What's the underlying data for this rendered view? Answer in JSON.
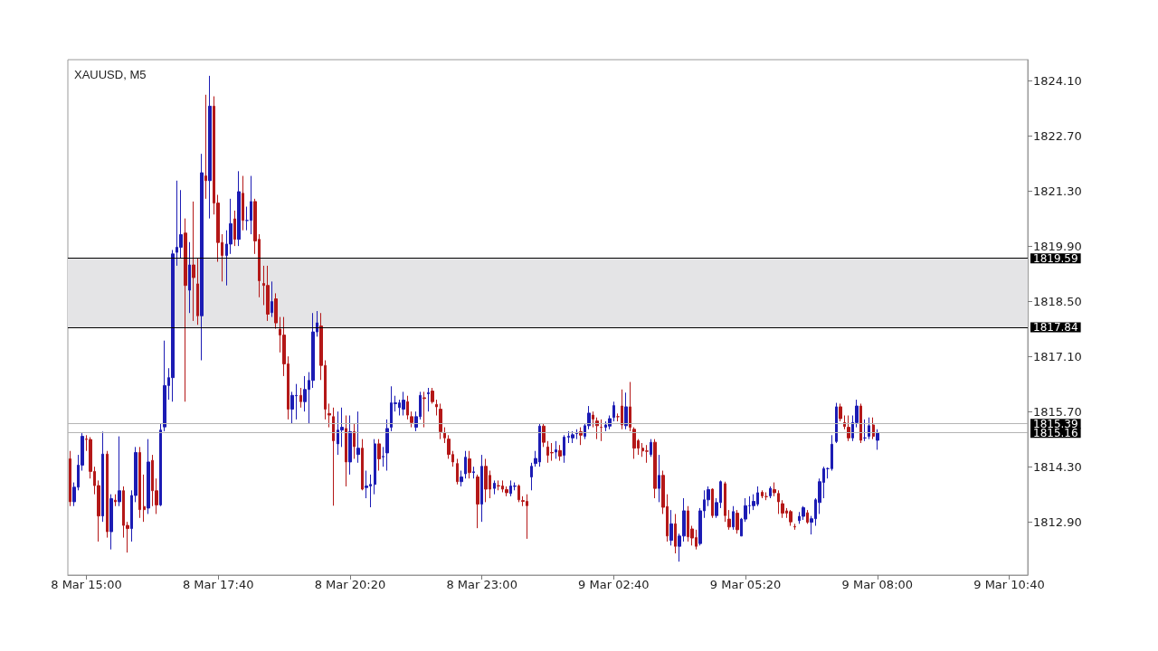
{
  "chart_data": {
    "type": "candlestick",
    "title": "XAUUSD, M5",
    "categories": [
      null,
      null,
      null,
      null,
      "8 Mar 15:00",
      null,
      null,
      null,
      null,
      null,
      null,
      null,
      null,
      null,
      null,
      null,
      null,
      null,
      null,
      null,
      null,
      null,
      null,
      null,
      null,
      null,
      null,
      null,
      null,
      null,
      null,
      null,
      null,
      null,
      null,
      null,
      "8 Mar 17:40",
      null,
      null,
      null,
      null,
      null,
      null,
      null,
      null,
      null,
      null,
      null,
      null,
      null,
      null,
      null,
      null,
      null,
      null,
      null,
      null,
      null,
      null,
      null,
      null,
      null,
      null,
      null,
      null,
      null,
      null,
      null,
      "8 Mar 20:20",
      null,
      null,
      null,
      null,
      null,
      null,
      null,
      null,
      null,
      null,
      null,
      null,
      null,
      null,
      null,
      null,
      null,
      null,
      null,
      null,
      null,
      null,
      null,
      null,
      null,
      null,
      null,
      null,
      null,
      null,
      null,
      "8 Mar 23:00",
      null,
      null,
      null,
      null,
      null,
      null,
      null,
      null,
      null,
      null,
      null,
      null,
      null,
      null,
      null,
      null,
      null,
      null,
      null,
      null,
      null,
      null,
      null,
      null,
      null,
      null,
      null,
      null,
      null,
      null,
      null,
      "9 Mar 02:40",
      null,
      null,
      null,
      null,
      null,
      null,
      null,
      null,
      null,
      null,
      null,
      null,
      null,
      null,
      null,
      null,
      null,
      null,
      null,
      null,
      null,
      null,
      null,
      null,
      null,
      null,
      null,
      null,
      null,
      null,
      null,
      "9 Mar 05:20",
      null,
      null,
      null,
      null,
      null,
      null,
      null,
      null,
      null,
      null,
      null,
      null,
      null,
      null,
      null,
      null,
      null,
      null,
      null,
      null,
      null,
      null,
      null,
      null,
      null,
      null,
      null,
      null,
      null,
      null,
      null,
      "9 Mar 08:00",
      null,
      null,
      null,
      null,
      null,
      null,
      null,
      null,
      null,
      null,
      null,
      null,
      null,
      null,
      null,
      null,
      null,
      null,
      null,
      null,
      null,
      null,
      null,
      null,
      null,
      null,
      null,
      null,
      null,
      null,
      null,
      "9 Mar 10:40",
      null,
      null,
      null,
      null
    ],
    "ohlc": [
      [
        1814.5,
        1814.7,
        1813.3,
        1813.41
      ],
      [
        1813.41,
        1813.9,
        1813.3,
        1813.78
      ],
      [
        1813.78,
        1814.6,
        1813.7,
        1814.34
      ],
      [
        1814.34,
        1815.15,
        1814.2,
        1815.07
      ],
      [
        1815.0,
        1815.1,
        1814.7,
        1814.99
      ],
      [
        1814.99,
        1815.05,
        1814.0,
        1814.18
      ],
      [
        1814.18,
        1814.3,
        1813.6,
        1813.82
      ],
      [
        1813.82,
        1813.95,
        1812.4,
        1813.05
      ],
      [
        1813.05,
        1815.19,
        1812.9,
        1814.62
      ],
      [
        1814.62,
        1814.7,
        1812.5,
        1812.65
      ],
      [
        1812.65,
        1813.6,
        1812.2,
        1813.49
      ],
      [
        1813.45,
        1813.6,
        1813.3,
        1813.41
      ],
      [
        1813.41,
        1815.07,
        1813.3,
        1813.69
      ],
      [
        1813.69,
        1813.8,
        1812.5,
        1812.81
      ],
      [
        1812.81,
        1812.9,
        1812.12,
        1812.73
      ],
      [
        1812.73,
        1813.7,
        1812.4,
        1813.57
      ],
      [
        1813.57,
        1814.8,
        1813.4,
        1814.66
      ],
      [
        1814.66,
        1814.8,
        1813.0,
        1813.21
      ],
      [
        1813.29,
        1814.1,
        1812.9,
        1813.21
      ],
      [
        1813.25,
        1815.0,
        1813.1,
        1814.42
      ],
      [
        1814.46,
        1814.6,
        1813.3,
        1813.69
      ],
      [
        1813.69,
        1814.0,
        1813.1,
        1813.33
      ],
      [
        1813.33,
        1815.4,
        1813.3,
        1815.23
      ],
      [
        1815.31,
        1817.5,
        1815.2,
        1816.36
      ],
      [
        1816.36,
        1816.8,
        1816.0,
        1816.56
      ],
      [
        1816.56,
        1819.8,
        1815.95,
        1819.7
      ],
      [
        1819.74,
        1821.56,
        1819.4,
        1819.87
      ],
      [
        1819.87,
        1821.32,
        1819.6,
        1820.19
      ],
      [
        1820.23,
        1820.6,
        1815.95,
        1818.9
      ],
      [
        1818.78,
        1820.0,
        1818.2,
        1819.42
      ],
      [
        1819.42,
        1821.03,
        1818.0,
        1819.1
      ],
      [
        1818.94,
        1819.6,
        1817.9,
        1818.13
      ],
      [
        1818.13,
        1822.24,
        1817.0,
        1821.76
      ],
      [
        1821.68,
        1823.74,
        1821.1,
        1821.56
      ],
      [
        1821.56,
        1824.22,
        1820.6,
        1823.45
      ],
      [
        1823.45,
        1823.7,
        1820.7,
        1820.99
      ],
      [
        1820.99,
        1821.2,
        1819.5,
        1819.99
      ],
      [
        1819.99,
        1820.2,
        1819.0,
        1819.66
      ],
      [
        1819.66,
        1820.3,
        1818.9,
        1819.95
      ],
      [
        1819.95,
        1821.1,
        1819.7,
        1820.47
      ],
      [
        1820.59,
        1820.8,
        1819.9,
        1820.07
      ],
      [
        1820.07,
        1821.8,
        1819.9,
        1821.28
      ],
      [
        1821.24,
        1821.68,
        1820.3,
        1820.55
      ],
      [
        1820.55,
        1820.9,
        1820.3,
        1820.55
      ],
      [
        1820.55,
        1821.68,
        1820.2,
        1821.03
      ],
      [
        1821.03,
        1821.1,
        1819.7,
        1820.03
      ],
      [
        1820.07,
        1820.2,
        1818.6,
        1819.02
      ],
      [
        1818.95,
        1819.4,
        1818.4,
        1818.9
      ],
      [
        1818.9,
        1819.4,
        1818.0,
        1818.17
      ],
      [
        1818.21,
        1819.0,
        1818.1,
        1818.49
      ],
      [
        1818.56,
        1818.7,
        1817.8,
        1817.95
      ],
      [
        1817.79,
        1818.1,
        1817.2,
        1817.64
      ],
      [
        1817.64,
        1818.1,
        1816.6,
        1816.91
      ],
      [
        1816.91,
        1817.1,
        1815.5,
        1815.76
      ],
      [
        1815.76,
        1816.2,
        1815.4,
        1816.11
      ],
      [
        1816.1,
        1816.4,
        1815.5,
        1816.11
      ],
      [
        1816.11,
        1816.3,
        1815.8,
        1815.95
      ],
      [
        1815.95,
        1816.6,
        1815.7,
        1816.26
      ],
      [
        1816.26,
        1816.7,
        1815.4,
        1816.49
      ],
      [
        1816.49,
        1818.2,
        1816.3,
        1817.72
      ],
      [
        1817.72,
        1818.25,
        1817.6,
        1817.95
      ],
      [
        1817.87,
        1818.2,
        1816.5,
        1816.87
      ],
      [
        1816.87,
        1817.0,
        1815.5,
        1815.76
      ],
      [
        1815.65,
        1815.9,
        1815.3,
        1815.61
      ],
      [
        1815.57,
        1815.8,
        1813.31,
        1814.96
      ],
      [
        1814.88,
        1815.7,
        1814.6,
        1815.23
      ],
      [
        1815.23,
        1815.8,
        1814.8,
        1815.3
      ],
      [
        1815.27,
        1815.6,
        1813.8,
        1814.42
      ],
      [
        1814.42,
        1815.6,
        1814.1,
        1815.19
      ],
      [
        1815.19,
        1815.4,
        1814.5,
        1814.81
      ],
      [
        1814.61,
        1815.7,
        1814.4,
        1814.77
      ],
      [
        1814.77,
        1815.0,
        1813.7,
        1813.73
      ],
      [
        1813.77,
        1814.2,
        1813.5,
        1813.81
      ],
      [
        1813.81,
        1814.1,
        1813.27,
        1813.85
      ],
      [
        1813.85,
        1815.0,
        1813.6,
        1814.88
      ],
      [
        1814.88,
        1815.0,
        1814.2,
        1814.5
      ],
      [
        1814.55,
        1814.8,
        1814.3,
        1814.56
      ],
      [
        1814.65,
        1815.5,
        1814.2,
        1815.27
      ],
      [
        1815.3,
        1816.34,
        1815.2,
        1815.92
      ],
      [
        1815.9,
        1816.1,
        1815.7,
        1815.92
      ],
      [
        1815.8,
        1816.0,
        1815.6,
        1815.92
      ],
      [
        1815.76,
        1816.2,
        1815.6,
        1815.99
      ],
      [
        1815.95,
        1816.1,
        1815.5,
        1815.61
      ],
      [
        1815.57,
        1815.7,
        1815.3,
        1815.42
      ],
      [
        1815.3,
        1815.7,
        1815.2,
        1815.57
      ],
      [
        1815.57,
        1816.2,
        1815.5,
        1816.11
      ],
      [
        1816.05,
        1816.2,
        1815.3,
        1816.03
      ],
      [
        1816.15,
        1816.3,
        1815.7,
        1816.18
      ],
      [
        1816.22,
        1816.3,
        1815.9,
        1815.95
      ],
      [
        1815.88,
        1816.0,
        1815.6,
        1815.82
      ],
      [
        1815.76,
        1815.9,
        1815.0,
        1815.19
      ],
      [
        1815.15,
        1815.3,
        1814.9,
        1815.03
      ],
      [
        1815.0,
        1815.1,
        1814.5,
        1814.61
      ],
      [
        1814.61,
        1814.7,
        1814.3,
        1814.42
      ],
      [
        1814.38,
        1814.5,
        1813.85,
        1813.92
      ],
      [
        1813.92,
        1814.2,
        1813.8,
        1814.04
      ],
      [
        1814.12,
        1814.7,
        1814.0,
        1814.54
      ],
      [
        1814.5,
        1814.7,
        1814.0,
        1814.15
      ],
      [
        1814.15,
        1814.3,
        1814.0,
        1814.17
      ],
      [
        1814.04,
        1814.1,
        1812.74,
        1813.35
      ],
      [
        1813.35,
        1814.6,
        1812.9,
        1814.31
      ],
      [
        1814.31,
        1814.5,
        1813.4,
        1813.73
      ],
      [
        1814.08,
        1814.2,
        1813.5,
        1813.73
      ],
      [
        1813.75,
        1813.95,
        1813.6,
        1813.88
      ],
      [
        1813.82,
        1813.95,
        1813.7,
        1813.81
      ],
      [
        1813.81,
        1813.95,
        1813.65,
        1813.73
      ],
      [
        1813.72,
        1813.8,
        1813.55,
        1813.64
      ],
      [
        1813.62,
        1813.95,
        1813.55,
        1813.81
      ],
      [
        1813.8,
        1813.9,
        1813.7,
        1813.81
      ],
      [
        1813.81,
        1813.85,
        1813.4,
        1813.46
      ],
      [
        1813.44,
        1813.55,
        1813.3,
        1813.42
      ],
      [
        1813.42,
        1813.6,
        1812.47,
        1813.31
      ],
      [
        1814.04,
        1814.4,
        1813.7,
        1814.31
      ],
      [
        1814.38,
        1814.7,
        1814.3,
        1814.51
      ],
      [
        1814.42,
        1815.4,
        1814.3,
        1815.33
      ],
      [
        1815.33,
        1815.4,
        1814.8,
        1814.92
      ],
      [
        1814.8,
        1814.95,
        1814.4,
        1814.59
      ],
      [
        1814.66,
        1814.9,
        1814.45,
        1814.65
      ],
      [
        1814.67,
        1814.95,
        1814.5,
        1814.73
      ],
      [
        1814.71,
        1814.85,
        1814.45,
        1814.57
      ],
      [
        1814.59,
        1815.1,
        1814.4,
        1815.05
      ],
      [
        1815.05,
        1815.2,
        1814.9,
        1815.07
      ],
      [
        1815.03,
        1815.2,
        1814.9,
        1815.11
      ],
      [
        1815.14,
        1815.25,
        1815.0,
        1815.15
      ],
      [
        1815.19,
        1815.3,
        1814.85,
        1815.1
      ],
      [
        1815.07,
        1815.4,
        1815.0,
        1815.34
      ],
      [
        1815.34,
        1815.84,
        1815.25,
        1815.66
      ],
      [
        1815.61,
        1815.7,
        1815.3,
        1815.51
      ],
      [
        1815.46,
        1815.55,
        1815.0,
        1815.34
      ],
      [
        1815.3,
        1815.5,
        1814.95,
        1815.3
      ],
      [
        1815.3,
        1815.45,
        1815.2,
        1815.36
      ],
      [
        1815.33,
        1815.6,
        1815.25,
        1815.52
      ],
      [
        1815.55,
        1815.95,
        1815.45,
        1815.85
      ],
      [
        1815.57,
        1815.65,
        1815.45,
        1815.57
      ],
      [
        1815.84,
        1816.26,
        1815.25,
        1815.36
      ],
      [
        1815.34,
        1816.18,
        1815.25,
        1815.82
      ],
      [
        1815.82,
        1816.45,
        1815.2,
        1815.3
      ],
      [
        1815.25,
        1815.3,
        1814.5,
        1814.77
      ],
      [
        1814.96,
        1815.0,
        1814.6,
        1814.77
      ],
      [
        1814.77,
        1814.9,
        1814.55,
        1814.7
      ],
      [
        1814.7,
        1814.85,
        1814.4,
        1814.69
      ],
      [
        1814.61,
        1815.0,
        1814.55,
        1814.92
      ],
      [
        1814.92,
        1815.0,
        1813.5,
        1813.75
      ],
      [
        1813.75,
        1814.6,
        1813.4,
        1814.08
      ],
      [
        1814.08,
        1814.2,
        1813.1,
        1813.27
      ],
      [
        1813.29,
        1813.6,
        1812.4,
        1812.54
      ],
      [
        1812.43,
        1813.2,
        1812.3,
        1812.85
      ],
      [
        1812.85,
        1813.1,
        1812.1,
        1812.28
      ],
      [
        1812.28,
        1812.6,
        1811.89,
        1812.54
      ],
      [
        1812.54,
        1813.5,
        1812.4,
        1813.18
      ],
      [
        1813.18,
        1813.3,
        1812.4,
        1812.52
      ],
      [
        1812.72,
        1812.8,
        1812.3,
        1812.49
      ],
      [
        1812.5,
        1812.7,
        1812.2,
        1812.28
      ],
      [
        1812.35,
        1813.25,
        1812.3,
        1813.18
      ],
      [
        1813.18,
        1813.7,
        1813.0,
        1813.46
      ],
      [
        1813.46,
        1813.8,
        1813.3,
        1813.72
      ],
      [
        1813.73,
        1813.75,
        1813.0,
        1813.06
      ],
      [
        1813.06,
        1813.5,
        1813.0,
        1813.39
      ],
      [
        1813.39,
        1813.95,
        1813.25,
        1813.92
      ],
      [
        1813.87,
        1813.92,
        1812.9,
        1813.06
      ],
      [
        1812.97,
        1813.2,
        1812.7,
        1812.77
      ],
      [
        1812.77,
        1813.3,
        1812.7,
        1813.16
      ],
      [
        1813.12,
        1813.2,
        1812.6,
        1812.7
      ],
      [
        1812.54,
        1813.0,
        1812.54,
        1812.97
      ],
      [
        1812.97,
        1813.5,
        1812.9,
        1813.31
      ],
      [
        1813.31,
        1813.55,
        1813.1,
        1813.31
      ],
      [
        1813.31,
        1813.6,
        1813.2,
        1813.42
      ],
      [
        1813.35,
        1813.8,
        1813.3,
        1813.64
      ],
      [
        1813.65,
        1813.7,
        1813.5,
        1813.56
      ],
      [
        1813.54,
        1813.65,
        1813.45,
        1813.54
      ],
      [
        1813.56,
        1813.8,
        1813.5,
        1813.75
      ],
      [
        1813.72,
        1813.9,
        1813.55,
        1813.64
      ],
      [
        1813.62,
        1813.7,
        1813.1,
        1813.41
      ],
      [
        1813.36,
        1813.45,
        1813.0,
        1813.12
      ],
      [
        1813.18,
        1813.25,
        1813.0,
        1813.12
      ],
      [
        1813.16,
        1813.2,
        1812.8,
        1812.9
      ],
      [
        1812.78,
        1812.85,
        1812.7,
        1812.77
      ],
      [
        1812.93,
        1813.15,
        1812.85,
        1813.04
      ],
      [
        1813.04,
        1813.3,
        1812.95,
        1813.26
      ],
      [
        1813.13,
        1813.2,
        1812.85,
        1812.89
      ],
      [
        1812.89,
        1813.05,
        1812.58,
        1812.98
      ],
      [
        1812.98,
        1813.5,
        1812.8,
        1813.46
      ],
      [
        1813.39,
        1814.0,
        1813.1,
        1813.92
      ],
      [
        1813.9,
        1814.3,
        1813.5,
        1814.25
      ],
      [
        1814.25,
        1814.28,
        1814.0,
        1814.25
      ],
      [
        1814.25,
        1815.1,
        1814.2,
        1814.87
      ],
      [
        1814.94,
        1815.92,
        1814.9,
        1815.82
      ],
      [
        1815.82,
        1815.9,
        1815.45,
        1815.52
      ],
      [
        1815.42,
        1815.6,
        1815.25,
        1815.32
      ],
      [
        1815.3,
        1815.6,
        1814.95,
        1815.03
      ],
      [
        1815.03,
        1815.6,
        1814.95,
        1815.42
      ],
      [
        1815.42,
        1816.0,
        1815.3,
        1815.84
      ],
      [
        1815.84,
        1815.9,
        1814.9,
        1814.97
      ],
      [
        1815.03,
        1815.5,
        1814.95,
        1815.03
      ],
      [
        1815.07,
        1815.55,
        1815.0,
        1815.34
      ],
      [
        1815.36,
        1815.55,
        1815.0,
        1815.07
      ],
      [
        1814.97,
        1815.25,
        1814.73,
        1815.16
      ],
      null,
      null,
      null,
      null,
      null,
      null,
      null,
      null,
      null,
      null,
      null,
      null,
      null,
      null,
      null,
      null,
      null,
      null,
      null,
      null,
      null,
      null,
      null,
      null,
      null,
      null,
      null,
      null,
      null,
      null,
      null,
      null,
      null,
      null,
      null,
      null
    ],
    "ylim": [
      1811.55,
      1824.63
    ],
    "yticks": [
      {
        "value": 1812.9,
        "label": "1812.90"
      },
      {
        "value": 1814.3,
        "label": "1814.30"
      },
      {
        "value": 1815.7,
        "label": "1815.70"
      },
      {
        "value": 1817.1,
        "label": "1817.10"
      },
      {
        "value": 1818.5,
        "label": "1818.50"
      },
      {
        "value": 1819.9,
        "label": "1819.90"
      },
      {
        "value": 1821.3,
        "label": "1821.30"
      },
      {
        "value": 1822.7,
        "label": "1822.70"
      },
      {
        "value": 1824.1,
        "label": "1824.10"
      }
    ],
    "bands": [
      {
        "axis": "y",
        "from": 1817.84,
        "to": 1819.59,
        "color": "#e4e4e6"
      }
    ],
    "ref_lines": [
      {
        "axis": "y",
        "value": 1819.59,
        "label": "1819.59",
        "color": "#000000",
        "line_style": "solid"
      },
      {
        "axis": "y",
        "value": 1817.84,
        "label": "1817.84",
        "color": "#000000",
        "line_style": "solid"
      },
      {
        "axis": "y",
        "value": 1815.39,
        "label": "1815.39",
        "color": "#b4b4b4",
        "line_style": "solid"
      },
      {
        "axis": "y",
        "value": 1815.16,
        "label": "1815.16",
        "color": "#b4b4b4",
        "line_style": "solid"
      }
    ]
  }
}
